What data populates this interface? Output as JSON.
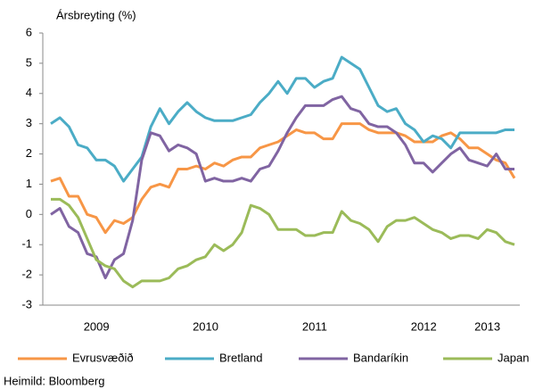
{
  "chart_data": {
    "type": "line",
    "y_axis_label": "Ársbreyting (%)",
    "source": "Heimild: Bloomberg",
    "categories": [
      null,
      null,
      null,
      null,
      null,
      null,
      "2009",
      null,
      null,
      null,
      null,
      null,
      null,
      null,
      null,
      null,
      null,
      null,
      "2010",
      null,
      null,
      null,
      null,
      null,
      null,
      null,
      null,
      null,
      null,
      null,
      "2011",
      null,
      null,
      null,
      null,
      null,
      null,
      null,
      null,
      null,
      null,
      null,
      "2012",
      null,
      null,
      null,
      null,
      null,
      null,
      "2013",
      null,
      null
    ],
    "series": [
      {
        "name": "Evrusvæðið",
        "color": "#f79646",
        "values": [
          1.1,
          1.2,
          0.6,
          0.6,
          0.0,
          -0.1,
          -0.6,
          -0.2,
          -0.3,
          -0.1,
          0.5,
          0.9,
          1.0,
          0.9,
          1.5,
          1.5,
          1.6,
          1.5,
          1.7,
          1.6,
          1.8,
          1.9,
          1.9,
          2.2,
          2.3,
          2.4,
          2.6,
          2.8,
          2.7,
          2.7,
          2.5,
          2.5,
          3.0,
          3.0,
          3.0,
          2.8,
          2.7,
          2.7,
          2.7,
          2.6,
          2.4,
          2.4,
          2.4,
          2.6,
          2.7,
          2.5,
          2.2,
          2.2,
          2.0,
          1.8,
          1.7,
          1.2
        ]
      },
      {
        "name": "Bretland",
        "color": "#4bacc6",
        "values": [
          3.0,
          3.2,
          2.9,
          2.3,
          2.2,
          1.8,
          1.8,
          1.6,
          1.1,
          1.5,
          1.9,
          2.9,
          3.5,
          3.0,
          3.4,
          3.7,
          3.4,
          3.2,
          3.1,
          3.1,
          3.1,
          3.2,
          3.3,
          3.7,
          4.0,
          4.4,
          4.0,
          4.5,
          4.5,
          4.2,
          4.4,
          4.5,
          5.2,
          5.0,
          4.8,
          4.2,
          3.6,
          3.4,
          3.5,
          3.0,
          2.8,
          2.4,
          2.6,
          2.5,
          2.2,
          2.7,
          2.7,
          2.7,
          2.7,
          2.7,
          2.8,
          2.8
        ]
      },
      {
        "name": "Bandaríkin",
        "color": "#8064a2",
        "values": [
          0.0,
          0.2,
          -0.4,
          -0.6,
          -1.3,
          -1.4,
          -2.1,
          -1.5,
          -1.3,
          -0.2,
          1.8,
          2.7,
          2.6,
          2.1,
          2.3,
          2.2,
          2.0,
          1.1,
          1.2,
          1.1,
          1.1,
          1.2,
          1.1,
          1.5,
          1.6,
          2.1,
          2.7,
          3.2,
          3.6,
          3.6,
          3.6,
          3.8,
          3.9,
          3.5,
          3.4,
          3.0,
          2.9,
          2.9,
          2.7,
          2.3,
          1.7,
          1.7,
          1.4,
          1.7,
          2.0,
          2.2,
          1.8,
          1.7,
          1.6,
          2.0,
          1.5,
          1.5
        ]
      },
      {
        "name": "Japan",
        "color": "#9bbb59",
        "values": [
          0.5,
          0.5,
          0.3,
          -0.1,
          -0.8,
          -1.5,
          -1.7,
          -1.8,
          -2.2,
          -2.4,
          -2.2,
          -2.2,
          -2.2,
          -2.1,
          -1.8,
          -1.7,
          -1.5,
          -1.4,
          -1.0,
          -1.2,
          -1.0,
          -0.6,
          0.3,
          0.2,
          0.0,
          -0.5,
          -0.5,
          -0.5,
          -0.7,
          -0.7,
          -0.6,
          -0.6,
          0.1,
          -0.2,
          -0.3,
          -0.5,
          -0.9,
          -0.4,
          -0.2,
          -0.2,
          -0.1,
          -0.3,
          -0.5,
          -0.6,
          -0.8,
          -0.7,
          -0.7,
          -0.8,
          -0.5,
          -0.6,
          -0.9,
          -1.0
        ]
      }
    ],
    "ylim": [
      -3,
      6
    ],
    "yticks": [
      -3,
      -2,
      -1,
      0,
      1,
      2,
      3,
      4,
      5,
      6
    ],
    "grid": false,
    "legend": "bottom"
  }
}
